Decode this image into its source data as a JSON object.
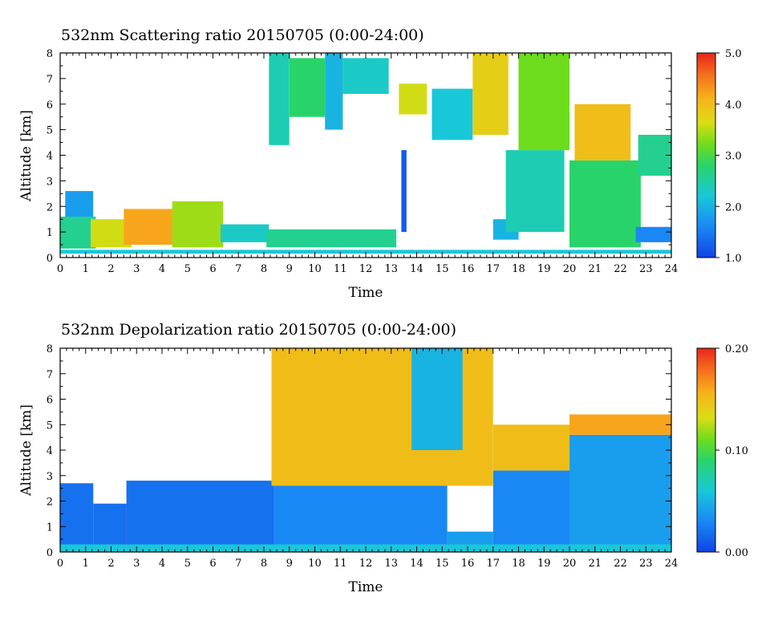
{
  "chart_data": [
    {
      "type": "heatmap",
      "title": "532nm Scattering ratio  20150705 (0:00-24:00)",
      "xlabel": "Time",
      "ylabel": "Altitude [km]",
      "xlim": [
        0,
        24
      ],
      "ylim": [
        0,
        8
      ],
      "x_ticks": [
        "0",
        "1",
        "2",
        "3",
        "4",
        "5",
        "6",
        "7",
        "8",
        "9",
        "10",
        "11",
        "12",
        "13",
        "14",
        "15",
        "16",
        "17",
        "18",
        "19",
        "20",
        "21",
        "22",
        "23",
        "24"
      ],
      "y_ticks": [
        "0",
        "1",
        "2",
        "3",
        "4",
        "5",
        "6",
        "7",
        "8"
      ],
      "colorbar": {
        "range": [
          1.0,
          5.0
        ],
        "ticks": [
          "1.0",
          "2.0",
          "3.0",
          "4.0",
          "5.0"
        ]
      },
      "features": [
        {
          "t": [
            0,
            24
          ],
          "z": [
            0.15,
            0.3
          ],
          "v": 2.2
        },
        {
          "t": [
            0,
            1.4
          ],
          "z": [
            0.35,
            1.6
          ],
          "v": 2.6
        },
        {
          "t": [
            0.2,
            1.3
          ],
          "z": [
            1.6,
            2.6
          ],
          "v": 1.8
        },
        {
          "t": [
            1.2,
            2.8
          ],
          "z": [
            0.4,
            1.5
          ],
          "v": 3.6
        },
        {
          "t": [
            2.5,
            4.6
          ],
          "z": [
            0.5,
            1.9
          ],
          "v": 4.2
        },
        {
          "t": [
            4.4,
            6.4
          ],
          "z": [
            0.4,
            2.2
          ],
          "v": 3.4
        },
        {
          "t": [
            6.3,
            8.2
          ],
          "z": [
            0.6,
            1.3
          ],
          "v": 2.3
        },
        {
          "t": [
            8.1,
            13.2
          ],
          "z": [
            0.4,
            1.1
          ],
          "v": 2.6
        },
        {
          "t": [
            8.2,
            9.0
          ],
          "z": [
            4.4,
            8.0
          ],
          "v": 2.4
        },
        {
          "t": [
            9.0,
            10.4
          ],
          "z": [
            5.5,
            7.8
          ],
          "v": 2.8
        },
        {
          "t": [
            10.4,
            11.1
          ],
          "z": [
            5.0,
            8.0
          ],
          "v": 2.0
        },
        {
          "t": [
            11.1,
            12.9
          ],
          "z": [
            6.4,
            7.8
          ],
          "v": 2.3
        },
        {
          "t": [
            13.3,
            14.4
          ],
          "z": [
            5.6,
            6.8
          ],
          "v": 3.6
        },
        {
          "t": [
            14.6,
            16.2
          ],
          "z": [
            4.6,
            6.6
          ],
          "v": 2.2
        },
        {
          "t": [
            13.4,
            13.6
          ],
          "z": [
            1.0,
            4.2
          ],
          "v": 1.2
        },
        {
          "t": [
            16.2,
            17.6
          ],
          "z": [
            4.8,
            8.0
          ],
          "v": 3.8
        },
        {
          "t": [
            17.0,
            18.0
          ],
          "z": [
            0.7,
            1.5
          ],
          "v": 2.0
        },
        {
          "t": [
            17.5,
            19.8
          ],
          "z": [
            1.0,
            4.2
          ],
          "v": 2.4
        },
        {
          "t": [
            18.0,
            20.0
          ],
          "z": [
            4.2,
            8.0
          ],
          "v": 3.2
        },
        {
          "t": [
            20.0,
            22.8
          ],
          "z": [
            0.4,
            3.8
          ],
          "v": 2.8
        },
        {
          "t": [
            20.2,
            22.4
          ],
          "z": [
            3.8,
            6.0
          ],
          "v": 4.0
        },
        {
          "t": [
            22.6,
            24.0
          ],
          "z": [
            0.6,
            1.2
          ],
          "v": 1.6
        },
        {
          "t": [
            22.7,
            24.0
          ],
          "z": [
            3.2,
            4.8
          ],
          "v": 2.6
        }
      ]
    },
    {
      "type": "heatmap",
      "title": "532nm Depolarization ratio  20150705 (0:00-24:00)",
      "xlabel": "Time",
      "ylabel": "Altitude [km]",
      "xlim": [
        0,
        24
      ],
      "ylim": [
        0,
        8
      ],
      "x_ticks": [
        "0",
        "1",
        "2",
        "3",
        "4",
        "5",
        "6",
        "7",
        "8",
        "9",
        "10",
        "11",
        "12",
        "13",
        "14",
        "15",
        "16",
        "17",
        "18",
        "19",
        "20",
        "21",
        "22",
        "23",
        "24"
      ],
      "y_ticks": [
        "0",
        "1",
        "2",
        "3",
        "4",
        "5",
        "6",
        "7",
        "8"
      ],
      "colorbar": {
        "range": [
          0.0,
          0.2
        ],
        "ticks": [
          "0.00",
          "0.10",
          "0.20"
        ]
      },
      "features": [
        {
          "t": [
            0,
            24
          ],
          "z": [
            0.0,
            0.3
          ],
          "v": 0.06
        },
        {
          "t": [
            0,
            1.3
          ],
          "z": [
            0.3,
            2.7
          ],
          "v": 0.02
        },
        {
          "t": [
            1.3,
            2.6
          ],
          "z": [
            0.3,
            1.9
          ],
          "v": 0.02
        },
        {
          "t": [
            2.6,
            8.4
          ],
          "z": [
            0.3,
            2.8
          ],
          "v": 0.02
        },
        {
          "t": [
            8.4,
            15.2
          ],
          "z": [
            0.3,
            2.6
          ],
          "v": 0.03
        },
        {
          "t": [
            15.2,
            17.0
          ],
          "z": [
            0.3,
            0.8
          ],
          "v": 0.04
        },
        {
          "t": [
            17.0,
            20.0
          ],
          "z": [
            0.3,
            3.2
          ],
          "v": 0.03
        },
        {
          "t": [
            20.0,
            24.0
          ],
          "z": [
            0.3,
            4.6
          ],
          "v": 0.04
        },
        {
          "t": [
            8.3,
            17.0
          ],
          "z": [
            2.6,
            8.0
          ],
          "v": 0.15
        },
        {
          "t": [
            13.8,
            15.8
          ],
          "z": [
            4.0,
            8.0
          ],
          "v": 0.05
        },
        {
          "t": [
            17.0,
            20.0
          ],
          "z": [
            3.2,
            5.0
          ],
          "v": 0.15
        },
        {
          "t": [
            20.0,
            24.0
          ],
          "z": [
            4.6,
            5.4
          ],
          "v": 0.16
        }
      ]
    }
  ]
}
